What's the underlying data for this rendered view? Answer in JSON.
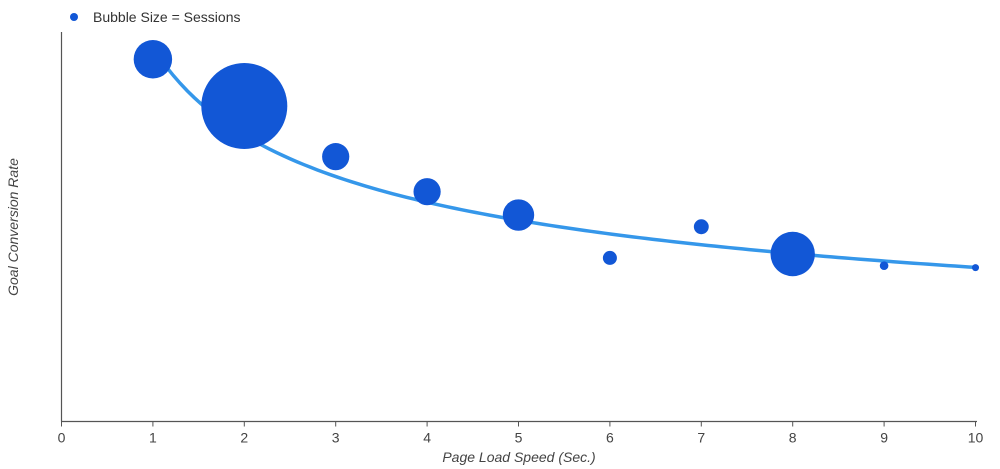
{
  "chart_data": {
    "type": "scatter",
    "title": "",
    "xlabel": "Page Load Speed (Sec.)",
    "ylabel": "Goal Conversion Rate",
    "xlim": [
      0,
      10
    ],
    "ylim": [
      0,
      10
    ],
    "x_ticks": [
      "0",
      "1",
      "2",
      "3",
      "4",
      "5",
      "6",
      "7",
      "8",
      "9",
      "10"
    ],
    "y_ticks_shown": false,
    "grid": false,
    "legend": {
      "placement": "top-left",
      "label": "Bubble Size = Sessions"
    },
    "colors": {
      "bubble": "#1257d6",
      "trendline": "#3597ea",
      "axis": "#555555"
    },
    "series": [
      {
        "name": "Bubble Size = Sessions",
        "points": [
          {
            "x": 1,
            "y": 9.3,
            "size": 6
          },
          {
            "x": 2,
            "y": 8.1,
            "size": 30
          },
          {
            "x": 3,
            "y": 6.8,
            "size": 3
          },
          {
            "x": 4,
            "y": 5.9,
            "size": 3
          },
          {
            "x": 5,
            "y": 5.3,
            "size": 4
          },
          {
            "x": 6,
            "y": 4.2,
            "size": 0.8
          },
          {
            "x": 7,
            "y": 5.0,
            "size": 0.9
          },
          {
            "x": 8,
            "y": 4.3,
            "size": 8
          },
          {
            "x": 9,
            "y": 4.0,
            "size": 0.3
          },
          {
            "x": 10,
            "y": 3.95,
            "size": 0.2
          }
        ]
      }
    ],
    "trendline": {
      "type": "power",
      "a": 9.6,
      "b": -0.385,
      "x_start": 1,
      "x_end": 10
    }
  }
}
